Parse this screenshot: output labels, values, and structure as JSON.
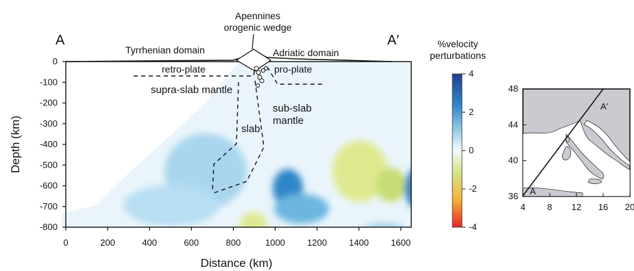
{
  "section": {
    "label_start": "A",
    "label_end": "A′",
    "wedge_title_line1": "Apennines",
    "wedge_title_line2": "orogenic wedge",
    "domain_left": "Tyrrhenian domain",
    "domain_right": "Adriatic domain",
    "retro_plate": "retro-plate",
    "pro_plate": "pro-plate",
    "supra_slab": "supra-slab mantle",
    "slab": "slab",
    "sub_slab_line1": "sub-slab",
    "sub_slab_line2": "mantle",
    "x_title": "Distance (km)",
    "y_title": "Depth (km)",
    "x_ticks": [
      "0",
      "200",
      "400",
      "600",
      "800",
      "1000",
      "1200",
      "1400",
      "1600"
    ],
    "y_ticks": [
      "0",
      "-100",
      "-200",
      "-300",
      "-400",
      "-500",
      "-600",
      "-700",
      "-800"
    ]
  },
  "colorbar": {
    "title_line1": "%velocity",
    "title_line2": "perturbations",
    "ticks": [
      "4",
      "2",
      "0",
      "-2",
      "-4"
    ],
    "colors": [
      "#1f3f8f",
      "#2f86c8",
      "#9fd0ea",
      "#f4fbff",
      "#d6e58a",
      "#f3b43a",
      "#e8242a"
    ]
  },
  "map": {
    "profile_start": "A",
    "profile_end": "A′",
    "lon_ticks": [
      "4",
      "8",
      "12",
      "16",
      "20"
    ],
    "lat_ticks": [
      "48",
      "44",
      "40",
      "36"
    ],
    "land_color": "#c9cbd1"
  }
}
